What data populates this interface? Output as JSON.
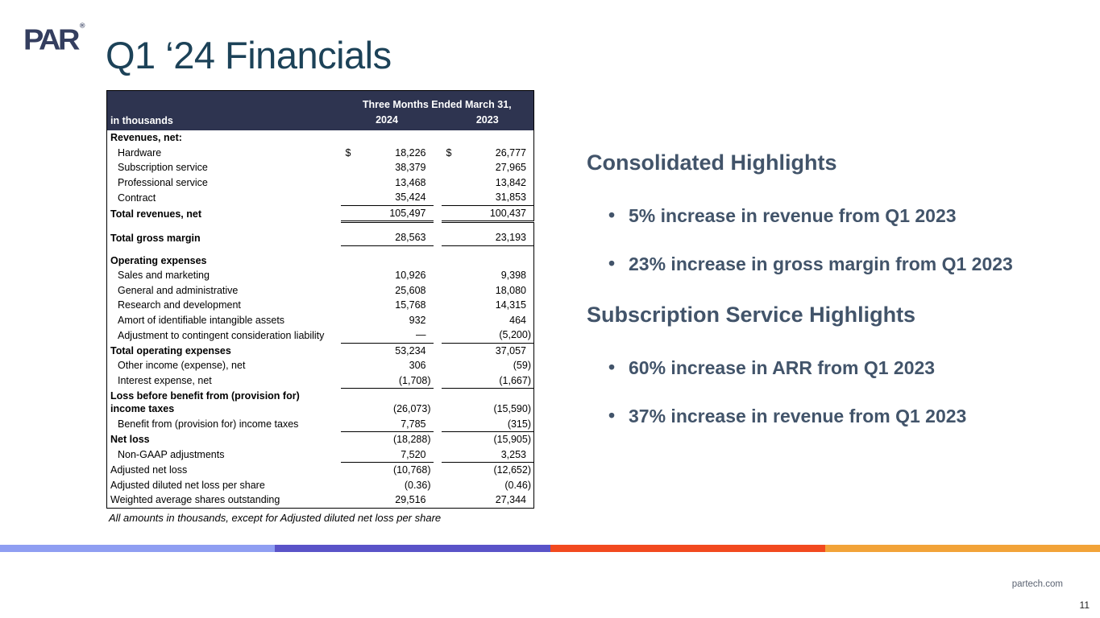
{
  "brand": {
    "logo_text": "PAR",
    "registered_mark": "®"
  },
  "title": "Q1 ‘24 Financials",
  "table": {
    "unit_label": "in thousands",
    "period_header": "Three Months Ended March 31,",
    "columns": [
      "2024",
      "2023"
    ],
    "currency_symbol": "$",
    "rows": [
      {
        "label": "Revenues, net:",
        "bold": true,
        "v2024": "",
        "v2023": ""
      },
      {
        "label": "Hardware",
        "indent": true,
        "dollar": true,
        "v2024": "18,226",
        "v2023": "26,777"
      },
      {
        "label": "Subscription service",
        "indent": true,
        "v2024": "38,379",
        "v2023": "27,965"
      },
      {
        "label": "Professional service",
        "indent": true,
        "v2024": "13,468",
        "v2023": "13,842"
      },
      {
        "label": "Contract",
        "indent": true,
        "v2024": "35,424",
        "v2023": "31,853",
        "rule": "single"
      },
      {
        "label": "Total revenues, net",
        "bold": true,
        "v2024": "105,497",
        "v2023": "100,437",
        "rule": "double"
      },
      {
        "label": "Total gross margin",
        "bold": true,
        "v2024": "28,563",
        "v2023": "23,193",
        "rule": "single",
        "gap_above": true
      },
      {
        "label": "Operating expenses",
        "bold": true,
        "v2024": "",
        "v2023": "",
        "gap_above": true
      },
      {
        "label": "Sales and marketing",
        "indent": true,
        "v2024": "10,926",
        "v2023": "9,398"
      },
      {
        "label": "General and administrative",
        "indent": true,
        "v2024": "25,608",
        "v2023": "18,080"
      },
      {
        "label": "Research and development",
        "indent": true,
        "v2024": "15,768",
        "v2023": "14,315"
      },
      {
        "label": "Amort of identifiable intangible assets",
        "indent": true,
        "v2024": "932",
        "v2023": "464"
      },
      {
        "label": "Adjustment to contingent consideration liability",
        "indent": true,
        "v2024": "—",
        "v2023": "(5,200)",
        "rule": "single"
      },
      {
        "label": "Total operating expenses",
        "bold": true,
        "v2024": "53,234",
        "v2023": "37,057"
      },
      {
        "label": "Other income (expense), net",
        "indent": true,
        "v2024": "306",
        "v2023": "(59)"
      },
      {
        "label": "Interest expense, net",
        "indent": true,
        "v2024": "(1,708)",
        "v2023": "(1,667)",
        "rule": "single"
      },
      {
        "label": "Loss before benefit from (provision for) income taxes",
        "bold": true,
        "v2024": "(26,073)",
        "v2023": "(15,590)"
      },
      {
        "label": "Benefit from (provision for) income taxes",
        "indent": true,
        "v2024": "7,785",
        "v2023": "(315)",
        "rule": "single"
      },
      {
        "label": "Net loss",
        "bold": true,
        "v2024": "(18,288)",
        "v2023": "(15,905)"
      },
      {
        "label": "Non-GAAP adjustments",
        "indent": true,
        "v2024": "7,520",
        "v2023": "3,253",
        "rule": "single"
      },
      {
        "label": "Adjusted net loss",
        "v2024": "(10,768)",
        "v2023": "(12,652)"
      },
      {
        "label": "Adjusted diluted net loss per share",
        "v2024": "(0.36)",
        "v2023": "(0.46)"
      },
      {
        "label": "Weighted average shares outstanding",
        "v2024": "29,516",
        "v2023": "27,344"
      }
    ],
    "footnote": "All amounts in thousands, except for Adjusted diluted net loss per share"
  },
  "highlights": {
    "sections": [
      {
        "heading": "Consolidated Highlights",
        "bullets": [
          "5% increase in revenue from Q1 2023",
          "23% increase in gross margin from Q1 2023"
        ]
      },
      {
        "heading": "Subscription Service Highlights",
        "bullets": [
          "60% increase in ARR from Q1 2023",
          "37% increase in revenue from Q1 2023"
        ]
      }
    ]
  },
  "footer": {
    "website": "partech.com",
    "page_number": "11"
  },
  "colors": {
    "header_bg": "#2e3450",
    "title_text": "#1c4258",
    "highlight_text": "#42546a",
    "logo_navy": "#343e5f",
    "stripe_segments": [
      "#8f9ef2",
      "#5a53c8",
      "#f2491f",
      "#f2a338"
    ]
  }
}
